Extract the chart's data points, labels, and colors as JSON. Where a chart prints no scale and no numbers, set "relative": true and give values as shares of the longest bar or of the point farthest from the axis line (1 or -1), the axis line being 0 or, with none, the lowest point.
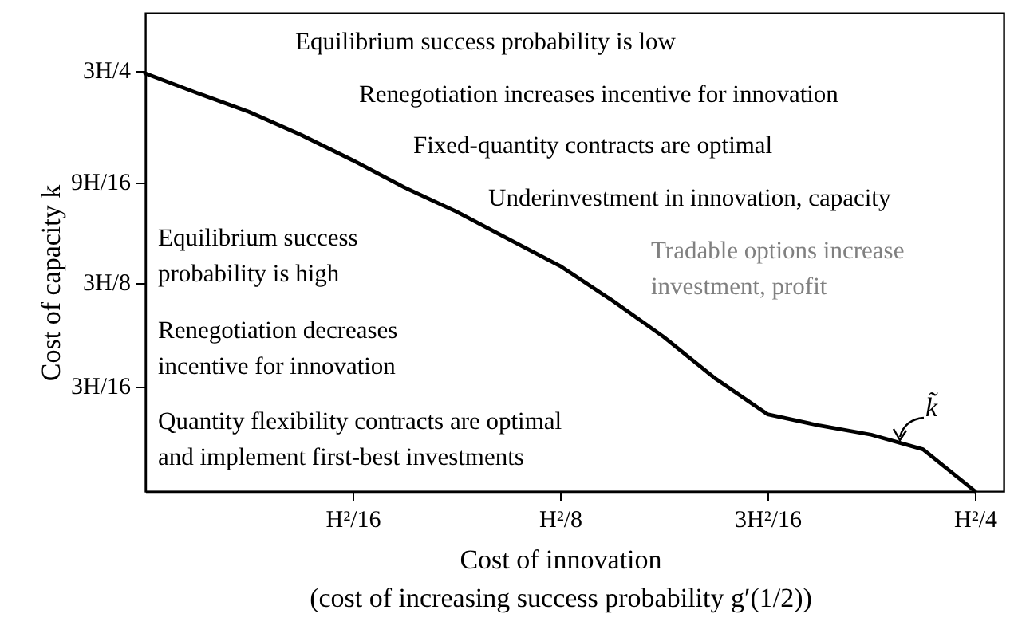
{
  "chart_data": {
    "type": "line",
    "relative": true,
    "xlabel": "Cost of innovation\n(cost of increasing success probability g′(1/2))",
    "ylabel": "Cost of capacity k",
    "categories": [
      null,
      null,
      null,
      null,
      "H²/16",
      null,
      null,
      null,
      "H²/8",
      null,
      null,
      null,
      "3H²/16",
      null,
      null,
      null,
      "H²/4"
    ],
    "series": [
      {
        "color": "#000000",
        "values": [
          1,
          0.953,
          0.908,
          0.853,
          0.792,
          0.727,
          0.669,
          0.604,
          0.539,
          0.457,
          0.369,
          0.269,
          0.184,
          0.157,
          0.135,
          0.1,
          0
        ]
      }
    ],
    "annotations": [
      "Equilibrium success probability is low",
      "Renegotiation increases incentive for innovation",
      "Fixed-quantity contracts are optimal",
      "Underinvestment in innovation, capacity",
      "Tradable options increase\ninvestment, profit",
      "Equilibrium success\nprobability is high",
      "Renegotiation decreases\nincentive for innovation",
      "Quantity flexibility contracts are optimal\nand implement first-best investments",
      "k̃",
      "3H/4",
      "9H/16",
      "3H/8",
      "3H/16"
    ]
  }
}
